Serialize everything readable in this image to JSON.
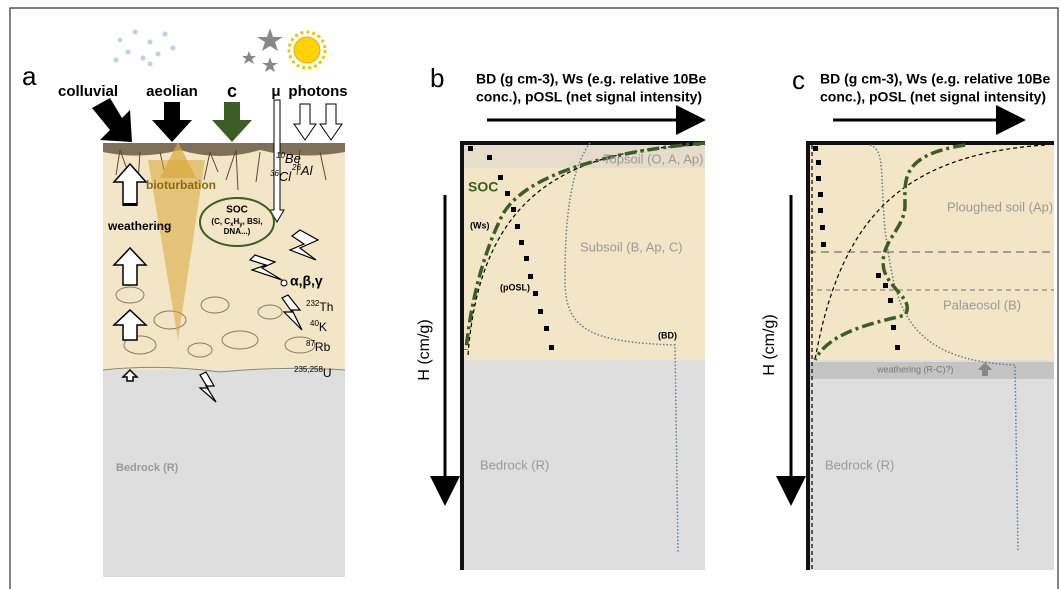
{
  "panel_a": {
    "label": "a",
    "inputs": [
      "colluvial",
      "aeolian",
      "c",
      "μ",
      "photons"
    ],
    "bioturbation": "bioturbation",
    "weathering": "weathering",
    "soc": "SOC",
    "soc_detail": [
      "(C, C",
      "x",
      "H",
      "y",
      ", BSi,"
    ],
    "soc_detail_2": "DNA...)",
    "cosmogenic": [
      {
        "mass": "10",
        "element": "Be"
      },
      {
        "mass": "36",
        "element": "Cl"
      },
      {
        "mass": "26",
        "element": "Al"
      }
    ],
    "radiation": "α,β,γ",
    "radionuclides": [
      {
        "mass": "232",
        "element": "Th"
      },
      {
        "mass": "40",
        "element": "K"
      },
      {
        "mass": "87",
        "element": "Rb"
      },
      {
        "mass": "235,258",
        "element": "U"
      }
    ],
    "bedrock": "Bedrock (R)"
  },
  "panel_b": {
    "label": "b",
    "header": [
      "BD (g cm-3), Ws (e.g. relative 10Be",
      "conc.), pOSL (net signal intensity)"
    ],
    "topsoil": "Topsoil (O, A, Ap)",
    "soc": "SOC",
    "ws": "(Ws)",
    "subsoil": "Subsoil (B, Ap, C)",
    "posl": "(pOSL)",
    "bd": "(BD)",
    "y_axis": "H (cm/g)",
    "bedrock": "Bedrock (R)"
  },
  "panel_c": {
    "label": "c",
    "header": [
      "BD (g cm-3), Ws (e.g. relative 10Be",
      "conc.), pOSL (net signal intensity)"
    ],
    "ploughed": "Ploughed soil (Ap)",
    "palaeosol": "Palaeosol (B)",
    "weathering": "weathering (R-C)?)",
    "y_axis": "H (cm/g)",
    "bedrock": "Bedrock (R)"
  }
}
